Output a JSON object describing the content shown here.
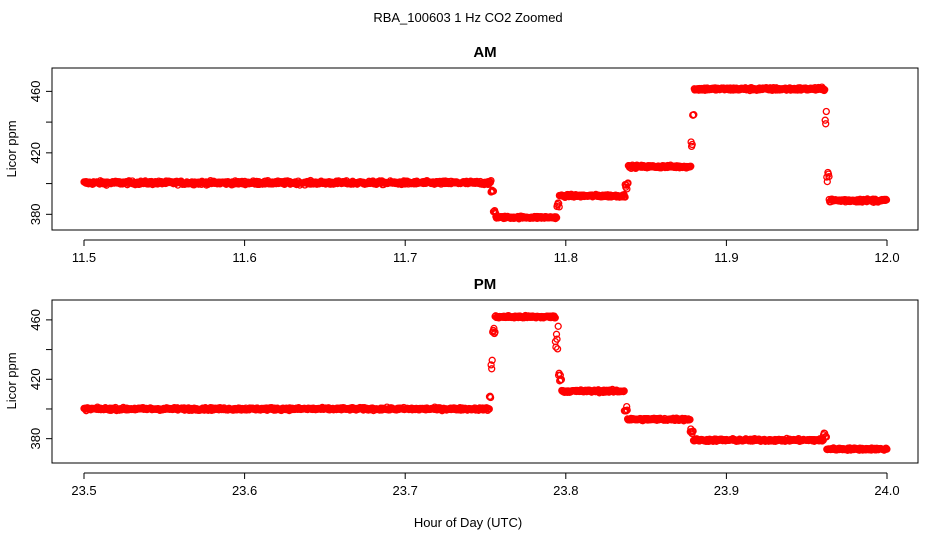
{
  "figure": {
    "title": "RBA_100603  1 Hz CO2 Zoomed",
    "xlabel": "Hour of Day (UTC)"
  },
  "colors": {
    "marker": "#ff0000",
    "frame": "#000000"
  },
  "chart_data": [
    {
      "type": "scatter",
      "title": "AM",
      "ylabel": "Licor ppm",
      "xlim": [
        11.5,
        12.0
      ],
      "ylim": [
        375,
        470
      ],
      "x_ticks": [
        11.5,
        11.6,
        11.7,
        11.8,
        11.9,
        12.0
      ],
      "x_tick_labels": [
        "11.5",
        "11.6",
        "11.7",
        "11.8",
        "11.9",
        "12.0"
      ],
      "y_ticks": [
        380,
        400,
        420,
        440,
        460
      ],
      "y_tick_labels": [
        "380",
        "",
        "420",
        "",
        "460"
      ],
      "marker": "open-circle",
      "series": [
        {
          "segments": [
            {
              "x": [
                11.5,
                11.7535
              ],
              "y": 400.5,
              "noise": 1.2
            },
            {
              "x": [
                11.7535,
                11.755
              ],
              "y": 395,
              "noise": 2
            },
            {
              "x": [
                11.755,
                11.7565
              ],
              "y": 382,
              "noise": 2
            },
            {
              "x": [
                11.7565,
                11.7945
              ],
              "y": 378,
              "noise": 0.8
            },
            {
              "x": [
                11.7945,
                11.796
              ],
              "y": 386,
              "noise": 2
            },
            {
              "x": [
                11.796,
                11.837
              ],
              "y": 392,
              "noise": 0.9
            },
            {
              "x": [
                11.837,
                11.839
              ],
              "y": 400,
              "noise": 3
            },
            {
              "x": [
                11.839,
                11.878
              ],
              "y": 411,
              "noise": 0.9
            },
            {
              "x": [
                11.878,
                11.879
              ],
              "y": 426,
              "noise": 2
            },
            {
              "x": [
                11.879,
                11.88
              ],
              "y": 444,
              "noise": 2
            },
            {
              "x": [
                11.88,
                11.9615
              ],
              "y": 461.5,
              "noise": 1.0
            },
            {
              "x": [
                11.9615,
                11.9625
              ],
              "y": 446,
              "noise": 8
            },
            {
              "x": [
                11.9625,
                11.964
              ],
              "y": 405,
              "noise": 6
            },
            {
              "x": [
                11.964,
                12.0
              ],
              "y": 389,
              "noise": 1.1
            }
          ]
        }
      ]
    },
    {
      "type": "scatter",
      "title": "PM",
      "ylabel": "Licor ppm",
      "xlim": [
        23.5,
        24.0
      ],
      "ylim": [
        369,
        468
      ],
      "x_ticks": [
        23.5,
        23.6,
        23.7,
        23.8,
        23.9,
        24.0
      ],
      "x_tick_labels": [
        "23.5",
        "23.6",
        "23.7",
        "23.8",
        "23.9",
        "24.0"
      ],
      "y_ticks": [
        380,
        400,
        420,
        440,
        460
      ],
      "y_tick_labels": [
        "380",
        "",
        "420",
        "",
        "460"
      ],
      "marker": "open-circle",
      "series": [
        {
          "segments": [
            {
              "x": [
                23.5,
                23.7525
              ],
              "y": 400,
              "noise": 0.9
            },
            {
              "x": [
                23.7525,
                23.7535
              ],
              "y": 408,
              "noise": 2
            },
            {
              "x": [
                23.7535,
                23.7545
              ],
              "y": 432,
              "noise": 6
            },
            {
              "x": [
                23.7545,
                23.756
              ],
              "y": 452,
              "noise": 3
            },
            {
              "x": [
                23.756,
                23.7935
              ],
              "y": 462,
              "noise": 0.9
            },
            {
              "x": [
                23.7935,
                23.7955
              ],
              "y": 448,
              "noise": 8
            },
            {
              "x": [
                23.7955,
                23.7975
              ],
              "y": 422,
              "noise": 5
            },
            {
              "x": [
                23.7975,
                23.8365
              ],
              "y": 412,
              "noise": 0.9
            },
            {
              "x": [
                23.8365,
                23.8385
              ],
              "y": 400,
              "noise": 3
            },
            {
              "x": [
                23.8385,
                23.8775
              ],
              "y": 393,
              "noise": 0.9
            },
            {
              "x": [
                23.8775,
                23.8795
              ],
              "y": 385,
              "noise": 2
            },
            {
              "x": [
                23.8795,
                23.9605
              ],
              "y": 379,
              "noise": 0.9
            },
            {
              "x": [
                23.9605,
                23.9625
              ],
              "y": 382,
              "noise": 4
            },
            {
              "x": [
                23.9625,
                24.0
              ],
              "y": 373,
              "noise": 0.8
            }
          ]
        }
      ]
    }
  ]
}
